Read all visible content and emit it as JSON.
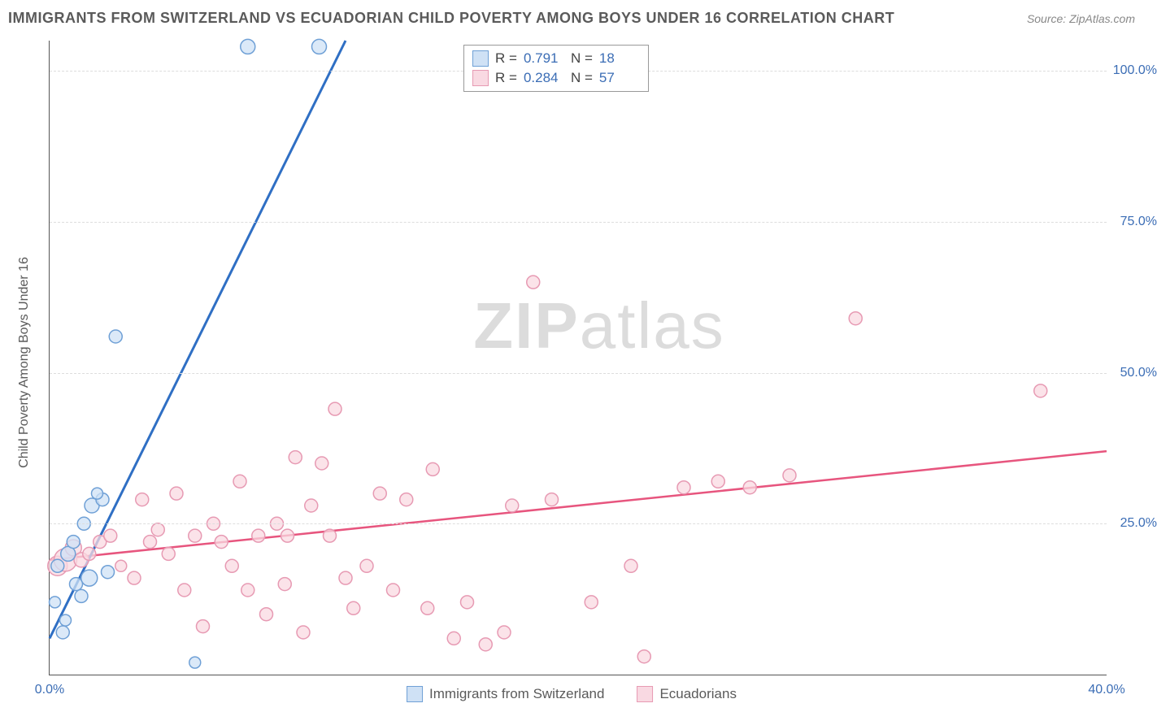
{
  "title": "IMMIGRANTS FROM SWITZERLAND VS ECUADORIAN CHILD POVERTY AMONG BOYS UNDER 16 CORRELATION CHART",
  "source_label": "Source: ",
  "source_value": "ZipAtlas.com",
  "y_axis_label": "Child Poverty Among Boys Under 16",
  "watermark_bold": "ZIP",
  "watermark_rest": "atlas",
  "chart": {
    "type": "scatter",
    "xlim": [
      0,
      40
    ],
    "ylim": [
      0,
      105
    ],
    "x_ticks": [
      {
        "v": 0,
        "label": "0.0%"
      },
      {
        "v": 40,
        "label": "40.0%"
      }
    ],
    "y_ticks": [
      {
        "v": 25,
        "label": "25.0%"
      },
      {
        "v": 50,
        "label": "50.0%"
      },
      {
        "v": 75,
        "label": "75.0%"
      },
      {
        "v": 100,
        "label": "100.0%"
      }
    ],
    "grid_color": "#dddddd",
    "background_color": "#ffffff",
    "axis_color": "#555555",
    "tick_label_color": "#3b6db5",
    "marker_radius_range": [
      6,
      14
    ],
    "series": [
      {
        "name": "Immigrants from Switzerland",
        "fill": "#cfe1f5",
        "stroke": "#6fa0d6",
        "line_color": "#2f6fc4",
        "line_width": 3,
        "R": "0.791",
        "N": "18",
        "regression": {
          "x1": 0,
          "y1": 6,
          "x2": 11.2,
          "y2": 105
        },
        "points": [
          {
            "x": 0.5,
            "y": 7,
            "r": 8
          },
          {
            "x": 0.6,
            "y": 9,
            "r": 7
          },
          {
            "x": 0.2,
            "y": 12,
            "r": 7
          },
          {
            "x": 1.0,
            "y": 15,
            "r": 8
          },
          {
            "x": 0.3,
            "y": 18,
            "r": 8
          },
          {
            "x": 0.7,
            "y": 20,
            "r": 9
          },
          {
            "x": 1.2,
            "y": 13,
            "r": 8
          },
          {
            "x": 1.5,
            "y": 16,
            "r": 10
          },
          {
            "x": 0.9,
            "y": 22,
            "r": 8
          },
          {
            "x": 1.3,
            "y": 25,
            "r": 8
          },
          {
            "x": 1.6,
            "y": 28,
            "r": 9
          },
          {
            "x": 2.0,
            "y": 29,
            "r": 8
          },
          {
            "x": 1.8,
            "y": 30,
            "r": 7
          },
          {
            "x": 2.2,
            "y": 17,
            "r": 8
          },
          {
            "x": 5.5,
            "y": 2,
            "r": 7
          },
          {
            "x": 2.5,
            "y": 56,
            "r": 8
          },
          {
            "x": 7.5,
            "y": 104,
            "r": 9
          },
          {
            "x": 10.2,
            "y": 104,
            "r": 9
          }
        ]
      },
      {
        "name": "Ecuadorians",
        "fill": "#f9d9e2",
        "stroke": "#e79ab3",
        "line_color": "#e7557e",
        "line_width": 2.5,
        "R": "0.284",
        "N": "57",
        "regression": {
          "x1": 0,
          "y1": 19,
          "x2": 40,
          "y2": 37
        },
        "points": [
          {
            "x": 0.3,
            "y": 18,
            "r": 12
          },
          {
            "x": 0.6,
            "y": 19,
            "r": 14
          },
          {
            "x": 0.9,
            "y": 21,
            "r": 10
          },
          {
            "x": 1.2,
            "y": 19,
            "r": 9
          },
          {
            "x": 1.5,
            "y": 20,
            "r": 8
          },
          {
            "x": 1.9,
            "y": 22,
            "r": 8
          },
          {
            "x": 2.3,
            "y": 23,
            "r": 8
          },
          {
            "x": 2.7,
            "y": 18,
            "r": 7
          },
          {
            "x": 3.2,
            "y": 16,
            "r": 8
          },
          {
            "x": 3.5,
            "y": 29,
            "r": 8
          },
          {
            "x": 3.8,
            "y": 22,
            "r": 8
          },
          {
            "x": 4.1,
            "y": 24,
            "r": 8
          },
          {
            "x": 4.5,
            "y": 20,
            "r": 8
          },
          {
            "x": 4.8,
            "y": 30,
            "r": 8
          },
          {
            "x": 5.1,
            "y": 14,
            "r": 8
          },
          {
            "x": 5.5,
            "y": 23,
            "r": 8
          },
          {
            "x": 5.8,
            "y": 8,
            "r": 8
          },
          {
            "x": 6.2,
            "y": 25,
            "r": 8
          },
          {
            "x": 6.5,
            "y": 22,
            "r": 8
          },
          {
            "x": 6.9,
            "y": 18,
            "r": 8
          },
          {
            "x": 7.2,
            "y": 32,
            "r": 8
          },
          {
            "x": 7.5,
            "y": 14,
            "r": 8
          },
          {
            "x": 7.9,
            "y": 23,
            "r": 8
          },
          {
            "x": 8.2,
            "y": 10,
            "r": 8
          },
          {
            "x": 8.6,
            "y": 25,
            "r": 8
          },
          {
            "x": 8.9,
            "y": 15,
            "r": 8
          },
          {
            "x": 9.3,
            "y": 36,
            "r": 8
          },
          {
            "x": 9.6,
            "y": 7,
            "r": 8
          },
          {
            "x": 9.9,
            "y": 28,
            "r": 8
          },
          {
            "x": 10.3,
            "y": 35,
            "r": 8
          },
          {
            "x": 10.6,
            "y": 23,
            "r": 8
          },
          {
            "x": 10.8,
            "y": 44,
            "r": 8
          },
          {
            "x": 11.2,
            "y": 16,
            "r": 8
          },
          {
            "x": 11.5,
            "y": 11,
            "r": 8
          },
          {
            "x": 12.0,
            "y": 18,
            "r": 8
          },
          {
            "x": 12.5,
            "y": 30,
            "r": 8
          },
          {
            "x": 13.0,
            "y": 14,
            "r": 8
          },
          {
            "x": 13.5,
            "y": 29,
            "r": 8
          },
          {
            "x": 14.3,
            "y": 11,
            "r": 8
          },
          {
            "x": 14.5,
            "y": 34,
            "r": 8
          },
          {
            "x": 15.3,
            "y": 6,
            "r": 8
          },
          {
            "x": 15.8,
            "y": 12,
            "r": 8
          },
          {
            "x": 16.5,
            "y": 5,
            "r": 8
          },
          {
            "x": 17.2,
            "y": 7,
            "r": 8
          },
          {
            "x": 17.5,
            "y": 28,
            "r": 8
          },
          {
            "x": 18.3,
            "y": 65,
            "r": 8
          },
          {
            "x": 19.0,
            "y": 29,
            "r": 8
          },
          {
            "x": 20.5,
            "y": 12,
            "r": 8
          },
          {
            "x": 22.0,
            "y": 18,
            "r": 8
          },
          {
            "x": 22.5,
            "y": 3,
            "r": 8
          },
          {
            "x": 24.0,
            "y": 31,
            "r": 8
          },
          {
            "x": 25.3,
            "y": 32,
            "r": 8
          },
          {
            "x": 26.5,
            "y": 31,
            "r": 8
          },
          {
            "x": 28.0,
            "y": 33,
            "r": 8
          },
          {
            "x": 30.5,
            "y": 59,
            "r": 8
          },
          {
            "x": 37.5,
            "y": 47,
            "r": 8
          },
          {
            "x": 9.0,
            "y": 23,
            "r": 8
          }
        ]
      }
    ]
  },
  "legend_top": {
    "r_label": "R  =",
    "n_label": "N  ="
  },
  "legend_bottom": [
    {
      "label": "Immigrants from Switzerland",
      "fill": "#cfe1f5",
      "stroke": "#6fa0d6"
    },
    {
      "label": "Ecuadorians",
      "fill": "#f9d9e2",
      "stroke": "#e79ab3"
    }
  ]
}
